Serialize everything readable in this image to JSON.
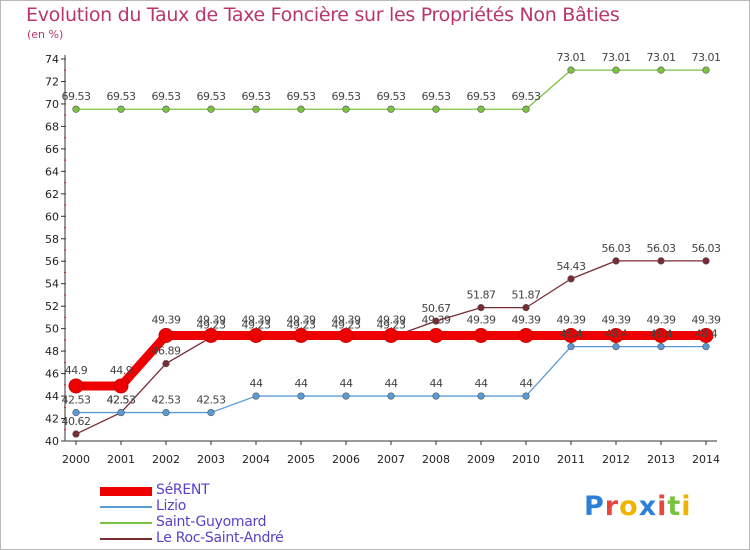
{
  "title": "Evolution du Taux de Taxe Foncière sur les Propriétés Non Bâties",
  "subtitle": "(en %)",
  "logo": {
    "text": "Proxiti",
    "colors": [
      "#2e7fd8",
      "#e8453c",
      "#f0b400",
      "#2e7fd8",
      "#e8453c",
      "#7cc242",
      "#f0b400"
    ]
  },
  "chart_data": {
    "type": "line",
    "title": "Evolution du Taux de Taxe Foncière sur les Propriétés Non Bâties",
    "ylabel": "(en %)",
    "xlabel": "",
    "ylim": [
      40,
      74
    ],
    "yticks": [
      40,
      42,
      44,
      46,
      48,
      50,
      52,
      54,
      56,
      58,
      60,
      62,
      64,
      66,
      68,
      70,
      72,
      74
    ],
    "categories": [
      "2000",
      "2001",
      "2002",
      "2003",
      "2004",
      "2005",
      "2006",
      "2007",
      "2008",
      "2009",
      "2010",
      "2011",
      "2012",
      "2013",
      "2014"
    ],
    "series": [
      {
        "name": "Saint-Guyomard",
        "color": "#7cc242",
        "values": [
          69.53,
          69.53,
          69.53,
          69.53,
          69.53,
          69.53,
          69.53,
          69.53,
          69.53,
          69.53,
          69.53,
          73.01,
          73.01,
          73.01,
          73.01
        ],
        "labels": [
          "69.53",
          "69.53",
          "69.53",
          "69.53",
          "69.53",
          "69.53",
          "69.53",
          "69.53",
          "69.53",
          "69.53",
          "69.53",
          "73.01",
          "73.01",
          "73.01",
          "73.01"
        ]
      },
      {
        "name": "Le Roc-Saint-André",
        "color": "#7a2a32",
        "values": [
          40.62,
          42.53,
          46.89,
          49.23,
          49.23,
          49.23,
          49.23,
          49.23,
          50.67,
          51.87,
          51.87,
          54.43,
          56.03,
          56.03,
          56.03
        ],
        "labels": [
          "40.62",
          "42.53",
          "46.89",
          "49.23",
          "49.23",
          "49.23",
          "49.23",
          "49.23",
          "50.67",
          "51.87",
          "51.87",
          "54.43",
          "56.03",
          "56.03",
          "56.03"
        ]
      },
      {
        "name": "Lizio",
        "color": "#5b9bd5",
        "values": [
          42.53,
          42.53,
          42.53,
          42.53,
          44,
          44,
          44,
          44,
          44,
          44,
          44,
          48.4,
          48.4,
          48.4,
          48.4
        ],
        "labels": [
          "42.53",
          "42.53",
          "42.53",
          "42.53",
          "44",
          "44",
          "44",
          "44",
          "44",
          "44",
          "44",
          "48.4",
          "48.4",
          "48.4",
          "48.4"
        ]
      },
      {
        "name": "SéRENT",
        "color": "#ee0000",
        "values": [
          44.9,
          44.9,
          49.39,
          49.39,
          49.39,
          49.39,
          49.39,
          49.39,
          49.39,
          49.39,
          49.39,
          49.39,
          49.39,
          49.39,
          49.39
        ],
        "labels": [
          "44.9",
          "44.9",
          "49.39",
          "49.39",
          "49.39",
          "49.39",
          "49.39",
          "49.39",
          "49.39",
          "49.39",
          "49.39",
          "49.39",
          "49.39",
          "49.39",
          "49.39"
        ]
      }
    ],
    "legend": [
      "SéRENT",
      "Lizio",
      "Saint-Guyomard",
      "Le Roc-Saint-André"
    ],
    "grid": false,
    "legend_position": "bottom-left"
  }
}
